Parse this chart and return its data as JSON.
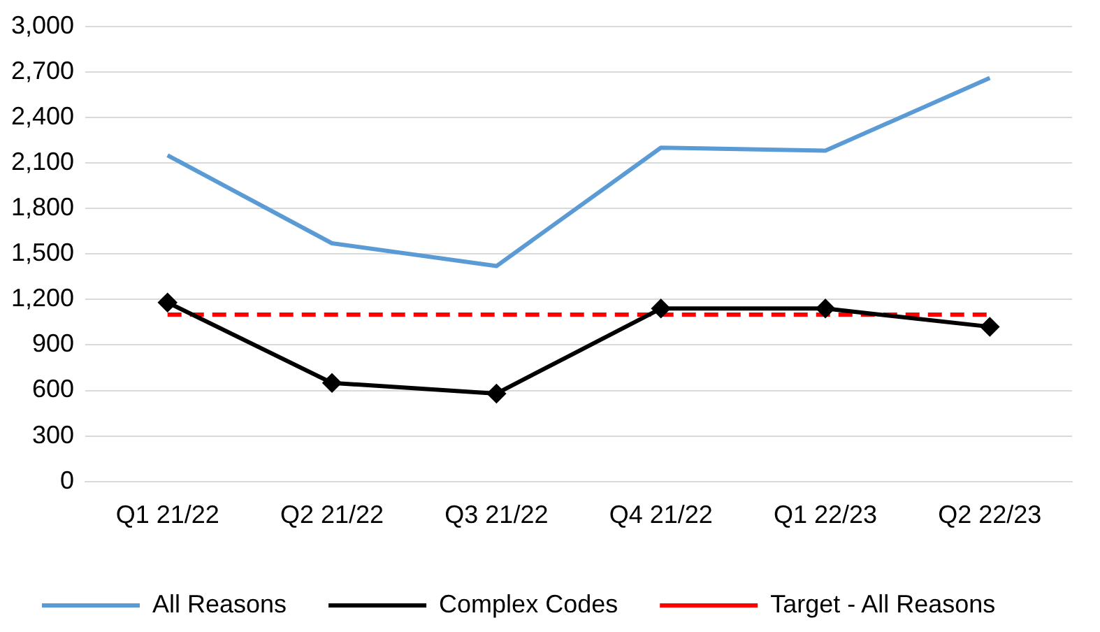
{
  "chart_data": {
    "type": "line",
    "categories": [
      "Q1 21/22",
      "Q2 21/22",
      "Q3 21/22",
      "Q4 21/22",
      "Q1 22/23",
      "Q2 22/23"
    ],
    "series": [
      {
        "name": "All Reasons",
        "color": "#5b9bd5",
        "marker": "none",
        "line_style": "solid",
        "values": [
          2150,
          1570,
          1420,
          2200,
          2180,
          2660
        ]
      },
      {
        "name": "Complex Codes",
        "color": "#000000",
        "marker": "diamond",
        "line_style": "solid",
        "values": [
          1180,
          650,
          580,
          1140,
          1140,
          1020
        ]
      },
      {
        "name": "Target - All Reasons",
        "color": "#ff0000",
        "marker": "none",
        "line_style": "dashed",
        "values": [
          1100,
          1100,
          1100,
          1100,
          1100,
          1100
        ]
      }
    ],
    "ylim": [
      0,
      3000
    ],
    "yticks": [
      0,
      300,
      600,
      900,
      {
        "value": 1200,
        "label": "1,200"
      },
      {
        "value": 1500,
        "label": "1,500"
      },
      {
        "value": 1800,
        "label": "1,800"
      },
      {
        "value": 2100,
        "label": "2,100"
      },
      {
        "value": 2400,
        "label": "2,400"
      },
      {
        "value": 2700,
        "label": "2,700"
      },
      {
        "value": 3000,
        "label": "3,000"
      }
    ],
    "grid": "y",
    "legend": "bottom"
  }
}
